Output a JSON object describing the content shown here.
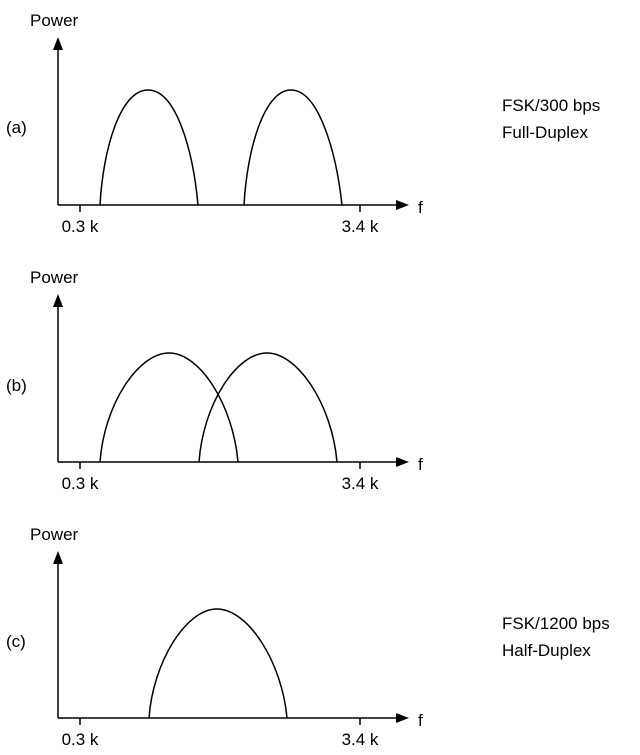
{
  "panels": [
    {
      "id": "a",
      "label": "(a)",
      "y_axis_label": "Power",
      "x_axis_label": "f",
      "ticks": [
        "0.3 k",
        "3.4 k"
      ],
      "caption_lines": [
        "FSK/300 bps",
        "Full-Duplex"
      ],
      "lobes": 2,
      "lobes_overlap": false
    },
    {
      "id": "b",
      "label": "(b)",
      "y_axis_label": "Power",
      "x_axis_label": "f",
      "ticks": [
        "0.3 k",
        "3.4 k"
      ],
      "caption_lines": [],
      "lobes": 2,
      "lobes_overlap": true
    },
    {
      "id": "c",
      "label": "(c)",
      "y_axis_label": "Power",
      "x_axis_label": "f",
      "ticks": [
        "0.3 k",
        "3.4 k"
      ],
      "caption_lines": [
        "FSK/1200 bps",
        "Half-Duplex"
      ],
      "lobes": 1,
      "lobes_overlap": false
    }
  ]
}
